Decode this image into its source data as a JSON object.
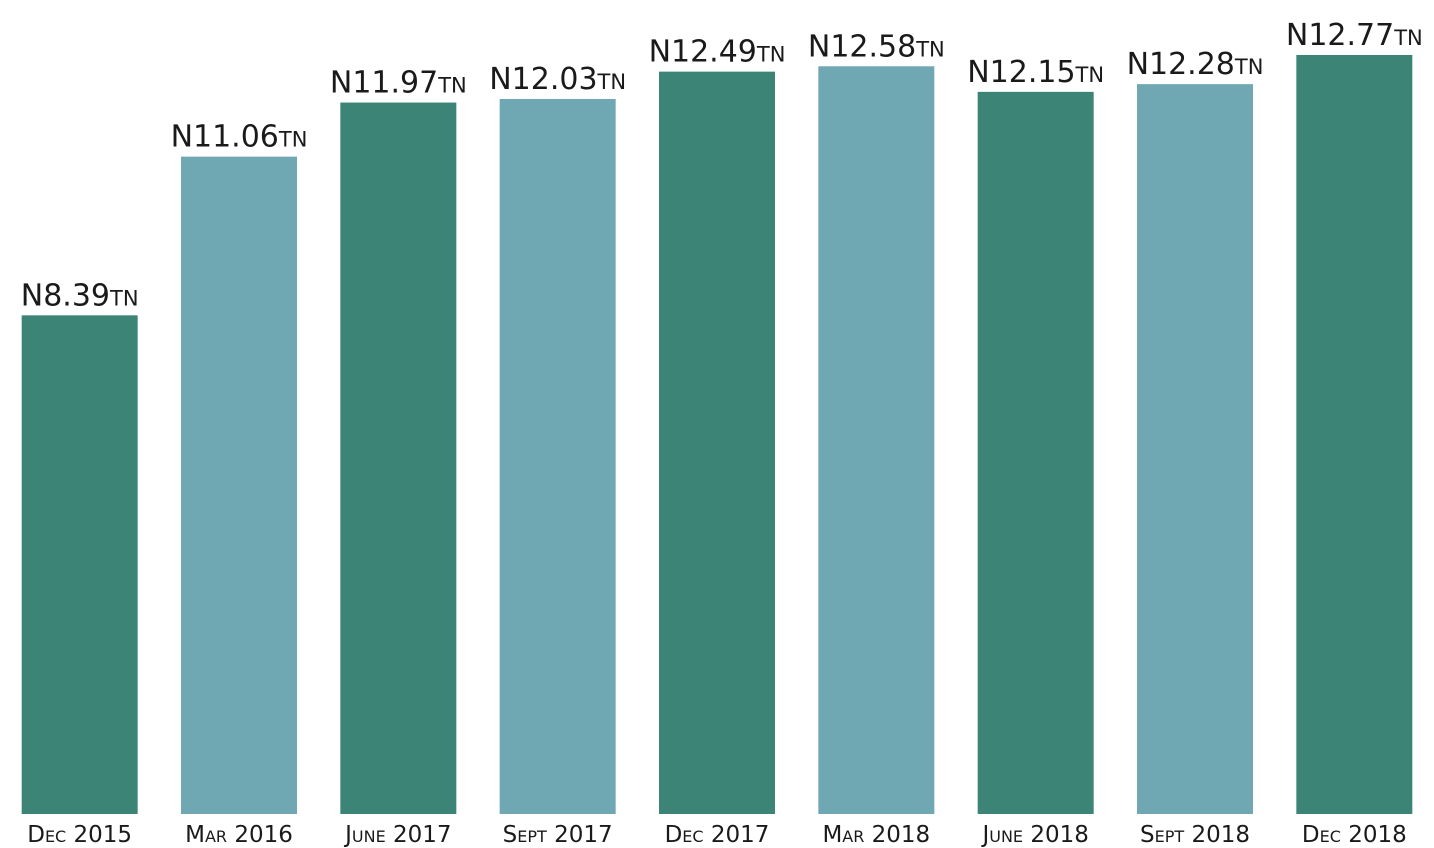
{
  "chart_data": {
    "type": "bar",
    "categories": [
      "Dec 2015",
      "Mar 2016",
      "June 2017",
      "Sept 2017",
      "Dec 2017",
      "Mar 2018",
      "June 2018",
      "Sept 2018",
      "Dec 2018"
    ],
    "values": [
      8.39,
      11.06,
      11.97,
      12.03,
      12.49,
      12.58,
      12.15,
      12.28,
      12.77
    ],
    "value_labels": [
      "N8.39tn",
      "N11.06tn",
      "N11.97tn",
      "N12.03tn",
      "N12.49tn",
      "N12.58tn",
      "N12.15tn",
      "N12.28tn",
      "N12.77tn"
    ],
    "colors": [
      "#3c8476",
      "#6fa7b3",
      "#3c8476",
      "#6fa7b3",
      "#3c8476",
      "#6fa7b3",
      "#3c8476",
      "#6fa7b3",
      "#3c8476"
    ]
  }
}
